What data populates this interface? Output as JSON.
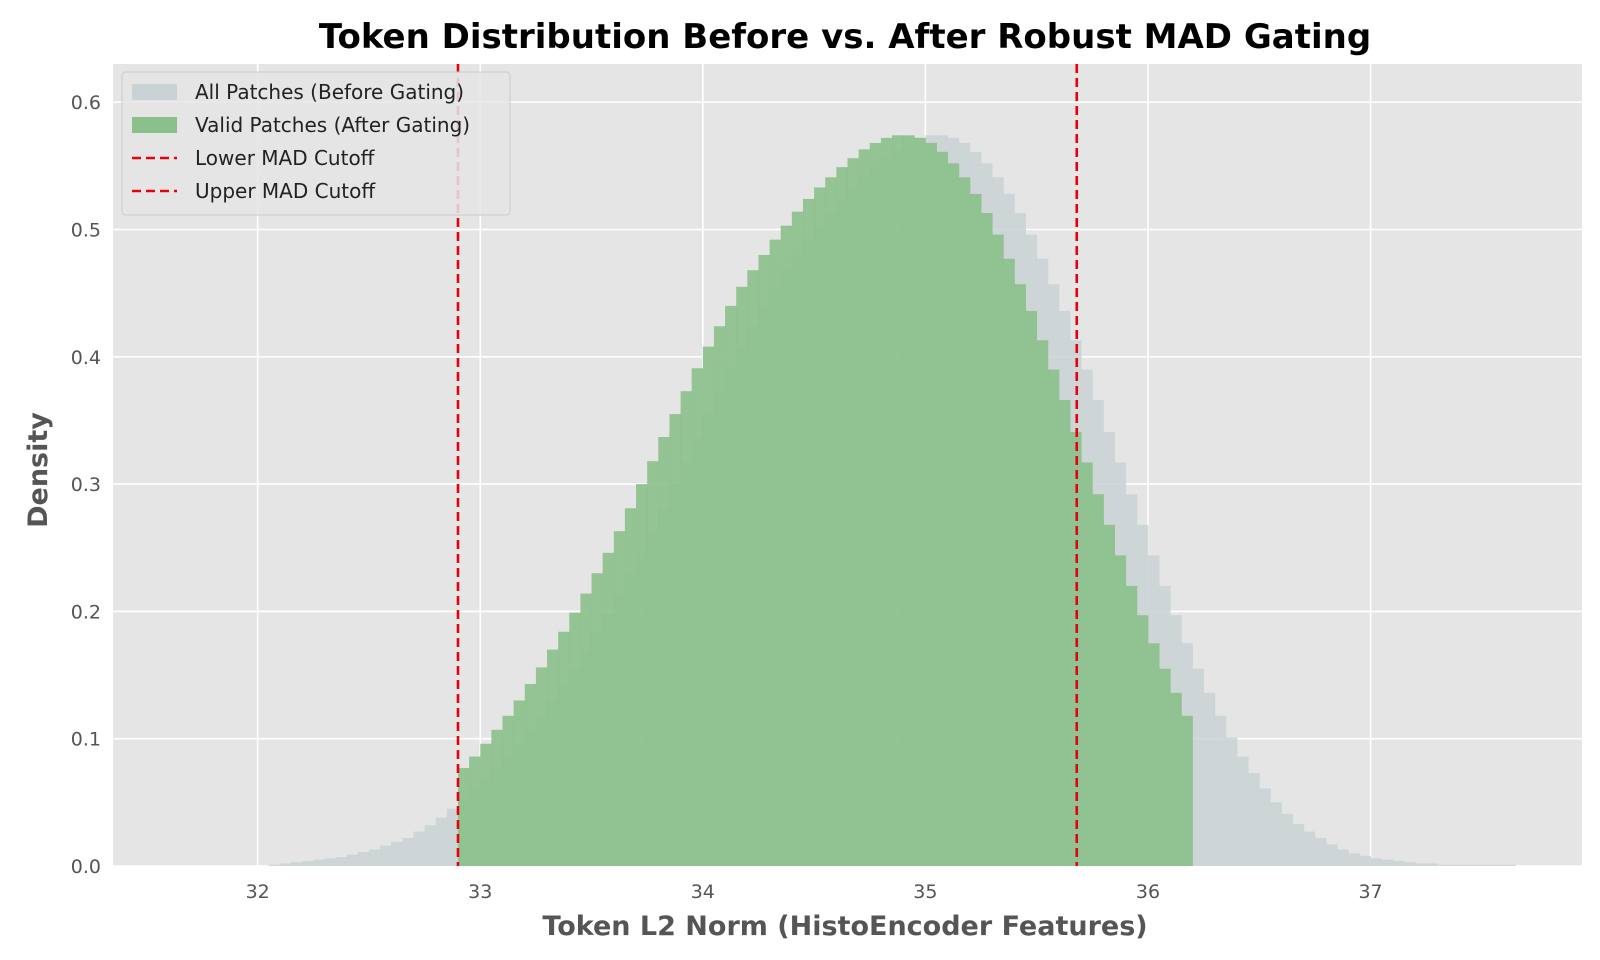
{
  "colors": {
    "background": "#E5E5E5",
    "grid": "#FFFFFF",
    "before_gating": "#C9D2D5",
    "after_gating": "#8BC08B",
    "cutoff": "#E8000B"
  },
  "chart_data": {
    "type": "histogram",
    "title": "Token Distribution Before vs. After Robust MAD Gating",
    "xlabel": "Token L2 Norm (HistoEncoder Features)",
    "ylabel": "Density",
    "xlim": [
      31.35,
      37.95
    ],
    "ylim": [
      0,
      0.63
    ],
    "xticks": [
      32,
      33,
      34,
      35,
      36,
      37
    ],
    "yticks": [
      0.0,
      0.1,
      0.2,
      0.3,
      0.4,
      0.5,
      0.6
    ],
    "grid": true,
    "legend_location": "upper left",
    "legend": [
      {
        "label": "All Patches (Before Gating)",
        "kind": "patch",
        "color": "#C9D2D5"
      },
      {
        "label": "Valid Patches (After Gating)",
        "kind": "patch",
        "color": "#8BC08B"
      },
      {
        "label": "Lower MAD Cutoff",
        "kind": "dashed-line",
        "color": "#E8000B"
      },
      {
        "label": "Upper MAD Cutoff",
        "kind": "dashed-line",
        "color": "#E8000B"
      }
    ],
    "cutoffs": {
      "lower": 32.9,
      "upper": 35.68
    },
    "series": [
      {
        "name": "All Patches (Before Gating)",
        "bin_start": 32.05,
        "bin_width": 0.05,
        "values": [
          0.001,
          0.002,
          0.003,
          0.004,
          0.005,
          0.006,
          0.007,
          0.009,
          0.011,
          0.013,
          0.016,
          0.019,
          0.022,
          0.027,
          0.032,
          0.038,
          0.045,
          0.052,
          0.06,
          0.068,
          0.077,
          0.086,
          0.096,
          0.107,
          0.118,
          0.13,
          0.143,
          0.156,
          0.17,
          0.184,
          0.199,
          0.214,
          0.23,
          0.246,
          0.263,
          0.281,
          0.3,
          0.318,
          0.337,
          0.355,
          0.373,
          0.391,
          0.408,
          0.424,
          0.44,
          0.455,
          0.468,
          0.48,
          0.492,
          0.503,
          0.514,
          0.524,
          0.533,
          0.541,
          0.549,
          0.556,
          0.563,
          0.568,
          0.572,
          0.574,
          0.574,
          0.572,
          0.568,
          0.561,
          0.552,
          0.541,
          0.528,
          0.513,
          0.496,
          0.477,
          0.457,
          0.436,
          0.413,
          0.39,
          0.366,
          0.341,
          0.317,
          0.292,
          0.268,
          0.244,
          0.22,
          0.197,
          0.175,
          0.155,
          0.136,
          0.118,
          0.101,
          0.086,
          0.073,
          0.061,
          0.05,
          0.041,
          0.033,
          0.027,
          0.022,
          0.017,
          0.013,
          0.01,
          0.008,
          0.006,
          0.005,
          0.004,
          0.003,
          0.002,
          0.002,
          0.001,
          0.001,
          0.001,
          0.001,
          0.001,
          0.001,
          0.001
        ]
      },
      {
        "name": "Valid Patches (After Gating)",
        "bin_start": 32.9,
        "bin_width": 0.05,
        "values": [
          0.077,
          0.086,
          0.096,
          0.107,
          0.118,
          0.13,
          0.143,
          0.156,
          0.17,
          0.184,
          0.199,
          0.214,
          0.23,
          0.246,
          0.263,
          0.281,
          0.3,
          0.318,
          0.337,
          0.355,
          0.373,
          0.391,
          0.408,
          0.424,
          0.44,
          0.455,
          0.468,
          0.48,
          0.492,
          0.503,
          0.514,
          0.524,
          0.533,
          0.541,
          0.549,
          0.556,
          0.563,
          0.568,
          0.572,
          0.574,
          0.574,
          0.572,
          0.568,
          0.561,
          0.552,
          0.541,
          0.528,
          0.513,
          0.496,
          0.477,
          0.457,
          0.436,
          0.413,
          0.39,
          0.366,
          0.341,
          0.317,
          0.292,
          0.268,
          0.244,
          0.22,
          0.197,
          0.175,
          0.155,
          0.136,
          0.118
        ]
      }
    ]
  }
}
